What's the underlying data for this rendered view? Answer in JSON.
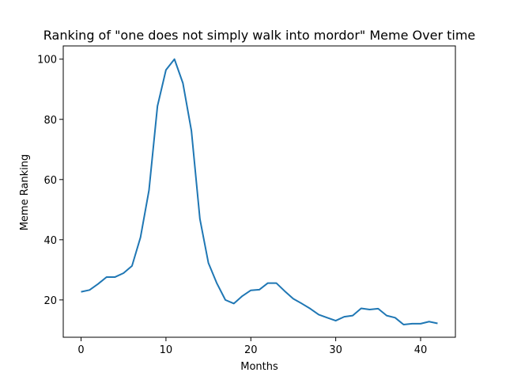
{
  "chart_data": {
    "type": "line",
    "title": "Ranking of \"one does not simply walk into mordor\" Meme Over time",
    "xlabel": "Months",
    "ylabel": "Meme Ranking",
    "xlim": [
      -2.1,
      44.1
    ],
    "ylim": [
      7.6,
      104.4
    ],
    "xticks": [
      0,
      10,
      20,
      30,
      40
    ],
    "yticks": [
      20,
      40,
      60,
      80,
      100
    ],
    "grid": false,
    "line_color": "#1f77b4",
    "series": [
      {
        "x": [
          0,
          1,
          2,
          3,
          4,
          5,
          6,
          7,
          8,
          9,
          10,
          11,
          12,
          13,
          14,
          15,
          16,
          17,
          18,
          19,
          20,
          21,
          22,
          23,
          24,
          25,
          26,
          27,
          28,
          29,
          30,
          31,
          32,
          33,
          34,
          35,
          36,
          37,
          38,
          39,
          40,
          41,
          42
        ],
        "values": [
          22.7,
          23.3,
          25.3,
          27.6,
          27.6,
          28.9,
          31.3,
          40.8,
          56.4,
          84.4,
          96.4,
          100,
          92,
          76.2,
          46.9,
          32.3,
          25.5,
          20,
          18.8,
          21.3,
          23.2,
          23.4,
          25.6,
          25.6,
          22.9,
          20.4,
          18.8,
          17.1,
          15.1,
          14.1,
          13.1,
          14.4,
          14.8,
          17.2,
          16.8,
          17.1,
          14.8,
          14.1,
          11.8,
          12.1,
          12.1,
          12.8,
          12.2
        ]
      }
    ]
  }
}
